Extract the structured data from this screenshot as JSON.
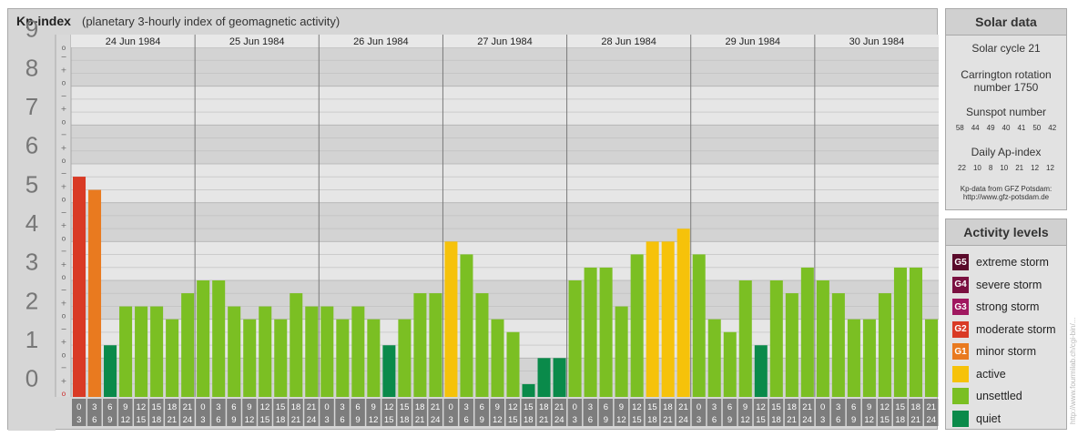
{
  "header": {
    "title": "Kp-index",
    "subtitle": "(planetary 3-hourly index of geomagnetic activity)"
  },
  "chart_data": {
    "type": "bar",
    "title": "Kp-index",
    "subtitle": "(planetary 3-hourly index of geomagnetic activity)",
    "days": [
      "24 Jun 1984",
      "25 Jun 1984",
      "26 Jun 1984",
      "27 Jun 1984",
      "28 Jun 1984",
      "29 Jun 1984",
      "30 Jun 1984"
    ],
    "interval_start_labels": [
      "0",
      "3",
      "6",
      "9",
      "12",
      "15",
      "18",
      "21"
    ],
    "interval_end_labels": [
      "3",
      "6",
      "9",
      "12",
      "15",
      "18",
      "21",
      "24"
    ],
    "y_ticks": [
      "0",
      "1",
      "2",
      "3",
      "4",
      "5",
      "6",
      "7",
      "8",
      "9"
    ],
    "sub_tick_labels": [
      "o",
      "+",
      "−"
    ],
    "ylim": [
      0,
      9
    ],
    "values": [
      5.67,
      5.33,
      1.33,
      2.33,
      2.33,
      2.33,
      2.0,
      2.67,
      3.0,
      3.0,
      2.33,
      2.0,
      2.33,
      2.0,
      2.67,
      2.33,
      2.33,
      2.0,
      2.33,
      2.0,
      1.33,
      2.0,
      2.67,
      2.67,
      4.0,
      3.67,
      2.67,
      2.0,
      1.67,
      0.33,
      1.0,
      1.0,
      3.0,
      3.33,
      3.33,
      2.33,
      3.67,
      4.0,
      4.0,
      4.33,
      3.67,
      2.0,
      1.67,
      3.0,
      1.33,
      3.0,
      2.67,
      3.33,
      3.0,
      2.67,
      2.0,
      2.0,
      2.67,
      3.33,
      3.33,
      2.0
    ],
    "colors": {
      "quiet": "#0a8a4a",
      "unsettled": "#7bbf23",
      "active": "#f6c20a",
      "minor_storm": "#e97a1f",
      "moderate_storm": "#d93a25"
    },
    "grid": true
  },
  "solar": {
    "title": "Solar data",
    "cycle": "Solar cycle 21",
    "carrington_1": "Carrington rotation",
    "carrington_2": "number 1750",
    "sunspot_title": "Sunspot number",
    "sunspot_values": [
      "58",
      "44",
      "49",
      "40",
      "41",
      "50",
      "42"
    ],
    "ap_title": "Daily Ap-index",
    "ap_values": [
      "22",
      "10",
      "8",
      "10",
      "21",
      "12",
      "12"
    ],
    "source_1": "Kp-data from GFZ Potsdam:",
    "source_2": "http://www.gfz-potsdam.de"
  },
  "activity": {
    "title": "Activity levels",
    "items": [
      {
        "badge": "G5",
        "label": "extreme storm",
        "color": "#5a0a2a"
      },
      {
        "badge": "G4",
        "label": "severe storm",
        "color": "#7a1040"
      },
      {
        "badge": "G3",
        "label": "strong storm",
        "color": "#a01860"
      },
      {
        "badge": "G2",
        "label": "moderate storm",
        "color": "#d93a25"
      },
      {
        "badge": "G1",
        "label": "minor storm",
        "color": "#e97a1f"
      },
      {
        "badge": "",
        "label": "active",
        "color": "#f6c20a"
      },
      {
        "badge": "",
        "label": "unsettled",
        "color": "#7bbf23"
      },
      {
        "badge": "",
        "label": "quiet",
        "color": "#0a8a4a"
      }
    ]
  },
  "watermark": "http://www.fourmilab.ch/cgi-bin/..."
}
